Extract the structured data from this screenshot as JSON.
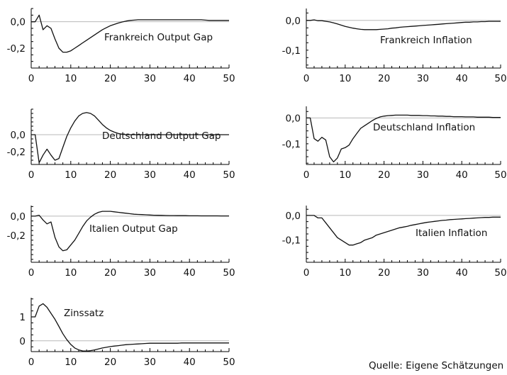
{
  "source": "Quelle: Eigene Schätzungen",
  "chart_data": [
    {
      "type": "line",
      "title": "Frankreich Output Gap",
      "xlim": [
        0,
        50
      ],
      "ylim": [
        -0.35,
        0.1
      ],
      "xticks": [
        0,
        10,
        20,
        30,
        40,
        50
      ],
      "yticks": [
        0.0,
        -0.2
      ],
      "ytick_labels": [
        "0,0",
        "-0,2"
      ],
      "x": [
        0,
        1,
        2,
        3,
        4,
        5,
        6,
        7,
        8,
        9,
        10,
        11,
        12,
        13,
        14,
        15,
        16,
        17,
        18,
        19,
        20,
        21,
        22,
        23,
        24,
        25,
        26,
        27,
        28,
        29,
        30,
        31,
        32,
        33,
        34,
        35,
        36,
        37,
        38,
        39,
        40,
        41,
        42,
        43,
        44,
        45,
        46,
        47,
        48,
        49,
        50
      ],
      "y": [
        0.0,
        0.0,
        0.05,
        -0.06,
        -0.03,
        -0.05,
        -0.13,
        -0.2,
        -0.23,
        -0.23,
        -0.22,
        -0.2,
        -0.18,
        -0.16,
        -0.14,
        -0.12,
        -0.1,
        -0.08,
        -0.06,
        -0.045,
        -0.03,
        -0.02,
        -0.01,
        -0.002,
        0.005,
        0.01,
        0.012,
        0.015,
        0.015,
        0.015,
        0.015,
        0.015,
        0.015,
        0.015,
        0.015,
        0.015,
        0.015,
        0.015,
        0.015,
        0.015,
        0.015,
        0.015,
        0.015,
        0.015,
        0.012,
        0.01,
        0.01,
        0.01,
        0.01,
        0.01,
        0.01
      ]
    },
    {
      "type": "line",
      "title": "Frankreich Inflation",
      "xlim": [
        0,
        50
      ],
      "ylim": [
        -0.16,
        0.04
      ],
      "xticks": [
        0,
        10,
        20,
        30,
        40,
        50
      ],
      "yticks": [
        0.0,
        -0.1
      ],
      "ytick_labels": [
        "0,0",
        "-0,1"
      ],
      "x": [
        0,
        1,
        2,
        3,
        4,
        5,
        6,
        7,
        8,
        9,
        10,
        11,
        12,
        13,
        14,
        15,
        16,
        17,
        18,
        19,
        20,
        21,
        22,
        23,
        24,
        25,
        26,
        27,
        28,
        29,
        30,
        31,
        32,
        33,
        34,
        35,
        36,
        37,
        38,
        39,
        40,
        41,
        42,
        43,
        44,
        45,
        46,
        47,
        48,
        49,
        50
      ],
      "y": [
        0.0,
        0.0,
        0.002,
        -0.001,
        -0.001,
        -0.003,
        -0.005,
        -0.008,
        -0.012,
        -0.016,
        -0.02,
        -0.023,
        -0.026,
        -0.028,
        -0.03,
        -0.031,
        -0.031,
        -0.031,
        -0.031,
        -0.03,
        -0.029,
        -0.028,
        -0.026,
        -0.025,
        -0.023,
        -0.022,
        -0.021,
        -0.02,
        -0.019,
        -0.018,
        -0.017,
        -0.016,
        -0.015,
        -0.014,
        -0.013,
        -0.012,
        -0.011,
        -0.01,
        -0.009,
        -0.008,
        -0.007,
        -0.006,
        -0.006,
        -0.005,
        -0.005,
        -0.004,
        -0.004,
        -0.003,
        -0.003,
        -0.003,
        -0.003
      ]
    },
    {
      "type": "line",
      "title": "Deutschland Output Gap",
      "xlim": [
        0,
        50
      ],
      "ylim": [
        -0.35,
        0.3
      ],
      "xticks": [
        0,
        10,
        20,
        30,
        40,
        50
      ],
      "yticks": [
        0.0,
        -0.2
      ],
      "ytick_labels": [
        "0,0",
        "-0,2"
      ],
      "x": [
        0,
        1,
        2,
        3,
        4,
        5,
        6,
        7,
        8,
        9,
        10,
        11,
        12,
        13,
        14,
        15,
        16,
        17,
        18,
        19,
        20,
        21,
        22,
        23,
        24,
        25,
        26,
        27,
        28,
        29,
        30,
        31,
        32,
        33,
        34,
        35,
        36,
        37,
        38,
        39,
        40,
        41,
        42,
        43,
        44,
        45,
        46,
        47,
        48,
        49,
        50
      ],
      "y": [
        0.0,
        0.0,
        -0.33,
        -0.24,
        -0.17,
        -0.24,
        -0.3,
        -0.28,
        -0.15,
        -0.02,
        0.08,
        0.16,
        0.22,
        0.25,
        0.26,
        0.25,
        0.22,
        0.17,
        0.12,
        0.08,
        0.05,
        0.03,
        0.015,
        0.005,
        0.0,
        0.0,
        0.0,
        0.0,
        0.0,
        0.0,
        0.0,
        0.0,
        0.0,
        0.0,
        0.0,
        0.0,
        0.0,
        0.0,
        0.0,
        0.0,
        0.0,
        0.0,
        0.0,
        0.0,
        0.0,
        0.0,
        0.0,
        0.0,
        0.0,
        0.0,
        0.0
      ]
    },
    {
      "type": "line",
      "title": "Deutschland Inflation",
      "xlim": [
        0,
        50
      ],
      "ylim": [
        -0.18,
        0.045
      ],
      "xticks": [
        0,
        10,
        20,
        30,
        40,
        50
      ],
      "yticks": [
        0.0,
        -0.1
      ],
      "ytick_labels": [
        "0,0",
        "-0,1"
      ],
      "x": [
        0,
        1,
        2,
        3,
        4,
        5,
        6,
        7,
        8,
        9,
        10,
        11,
        12,
        13,
        14,
        15,
        16,
        17,
        18,
        19,
        20,
        21,
        22,
        23,
        24,
        25,
        26,
        27,
        28,
        29,
        30,
        31,
        32,
        33,
        34,
        35,
        36,
        37,
        38,
        39,
        40,
        41,
        42,
        43,
        44,
        45,
        46,
        47,
        48,
        49,
        50
      ],
      "y": [
        0.0,
        0.0,
        -0.08,
        -0.09,
        -0.075,
        -0.085,
        -0.15,
        -0.17,
        -0.155,
        -0.12,
        -0.115,
        -0.105,
        -0.08,
        -0.06,
        -0.04,
        -0.03,
        -0.02,
        -0.01,
        -0.002,
        0.004,
        0.007,
        0.009,
        0.01,
        0.011,
        0.011,
        0.011,
        0.011,
        0.01,
        0.01,
        0.01,
        0.009,
        0.009,
        0.008,
        0.008,
        0.007,
        0.007,
        0.006,
        0.006,
        0.005,
        0.005,
        0.005,
        0.004,
        0.004,
        0.004,
        0.003,
        0.003,
        0.003,
        0.003,
        0.002,
        0.002,
        0.002
      ]
    },
    {
      "type": "line",
      "title": "Italien Output Gap",
      "xlim": [
        0,
        50
      ],
      "ylim": [
        -0.48,
        0.11
      ],
      "xticks": [
        0,
        10,
        20,
        30,
        40,
        50
      ],
      "yticks": [
        0.0,
        -0.2
      ],
      "ytick_labels": [
        "0,0",
        "-0,2"
      ],
      "x": [
        0,
        1,
        2,
        3,
        4,
        5,
        6,
        7,
        8,
        9,
        10,
        11,
        12,
        13,
        14,
        15,
        16,
        17,
        18,
        19,
        20,
        21,
        22,
        23,
        24,
        25,
        26,
        27,
        28,
        29,
        30,
        31,
        32,
        33,
        34,
        35,
        36,
        37,
        38,
        39,
        40,
        41,
        42,
        43,
        44,
        45,
        46,
        47,
        48,
        49,
        50
      ],
      "y": [
        0.0,
        0.0,
        0.01,
        -0.04,
        -0.08,
        -0.06,
        -0.22,
        -0.32,
        -0.36,
        -0.35,
        -0.3,
        -0.25,
        -0.18,
        -0.11,
        -0.05,
        -0.01,
        0.02,
        0.04,
        0.05,
        0.05,
        0.05,
        0.045,
        0.04,
        0.035,
        0.03,
        0.025,
        0.02,
        0.018,
        0.016,
        0.014,
        0.012,
        0.01,
        0.009,
        0.008,
        0.007,
        0.006,
        0.006,
        0.005,
        0.005,
        0.005,
        0.004,
        0.004,
        0.004,
        0.003,
        0.003,
        0.003,
        0.003,
        0.003,
        0.002,
        0.002,
        0.002
      ]
    },
    {
      "type": "line",
      "title": "Italien Inflation",
      "xlim": [
        0,
        50
      ],
      "ylim": [
        -0.19,
        0.04
      ],
      "xticks": [
        0,
        10,
        20,
        30,
        40,
        50
      ],
      "yticks": [
        0.0,
        -0.1
      ],
      "ytick_labels": [
        "0,0",
        "-0,1"
      ],
      "x": [
        0,
        1,
        2,
        3,
        4,
        5,
        6,
        7,
        8,
        9,
        10,
        11,
        12,
        13,
        14,
        15,
        16,
        17,
        18,
        19,
        20,
        21,
        22,
        23,
        24,
        25,
        26,
        27,
        28,
        29,
        30,
        31,
        32,
        33,
        34,
        35,
        36,
        37,
        38,
        39,
        40,
        41,
        42,
        43,
        44,
        45,
        46,
        47,
        48,
        49,
        50
      ],
      "y": [
        0.0,
        0.0,
        0.0,
        -0.01,
        -0.01,
        -0.03,
        -0.05,
        -0.07,
        -0.09,
        -0.1,
        -0.11,
        -0.12,
        -0.12,
        -0.115,
        -0.11,
        -0.1,
        -0.095,
        -0.09,
        -0.08,
        -0.075,
        -0.07,
        -0.065,
        -0.06,
        -0.055,
        -0.05,
        -0.047,
        -0.044,
        -0.04,
        -0.037,
        -0.034,
        -0.031,
        -0.028,
        -0.026,
        -0.024,
        -0.022,
        -0.02,
        -0.019,
        -0.017,
        -0.016,
        -0.015,
        -0.014,
        -0.013,
        -0.012,
        -0.011,
        -0.01,
        -0.009,
        -0.008,
        -0.008,
        -0.007,
        -0.007,
        -0.007
      ]
    },
    {
      "type": "line",
      "title": "Zinssatz",
      "xlim": [
        0,
        50
      ],
      "ylim": [
        -0.45,
        1.8
      ],
      "xticks": [
        0,
        10,
        20,
        30,
        40,
        50
      ],
      "yticks": [
        1.0,
        0.0
      ],
      "ytick_labels": [
        "1",
        "0"
      ],
      "x": [
        0,
        1,
        2,
        3,
        4,
        5,
        6,
        7,
        8,
        9,
        10,
        11,
        12,
        13,
        14,
        15,
        16,
        17,
        18,
        19,
        20,
        21,
        22,
        23,
        24,
        25,
        26,
        27,
        28,
        29,
        30,
        31,
        32,
        33,
        34,
        35,
        36,
        37,
        38,
        39,
        40,
        41,
        42,
        43,
        44,
        45,
        46,
        47,
        48,
        49,
        50
      ],
      "y": [
        1.0,
        1.0,
        1.45,
        1.55,
        1.4,
        1.15,
        0.9,
        0.6,
        0.3,
        0.05,
        -0.15,
        -0.3,
        -0.38,
        -0.42,
        -0.43,
        -0.41,
        -0.38,
        -0.34,
        -0.3,
        -0.27,
        -0.24,
        -0.22,
        -0.2,
        -0.18,
        -0.16,
        -0.15,
        -0.14,
        -0.13,
        -0.12,
        -0.11,
        -0.1,
        -0.1,
        -0.1,
        -0.1,
        -0.1,
        -0.1,
        -0.1,
        -0.1,
        -0.09,
        -0.09,
        -0.09,
        -0.09,
        -0.09,
        -0.09,
        -0.09,
        -0.09,
        -0.09,
        -0.09,
        -0.09,
        -0.09,
        -0.09
      ]
    }
  ]
}
